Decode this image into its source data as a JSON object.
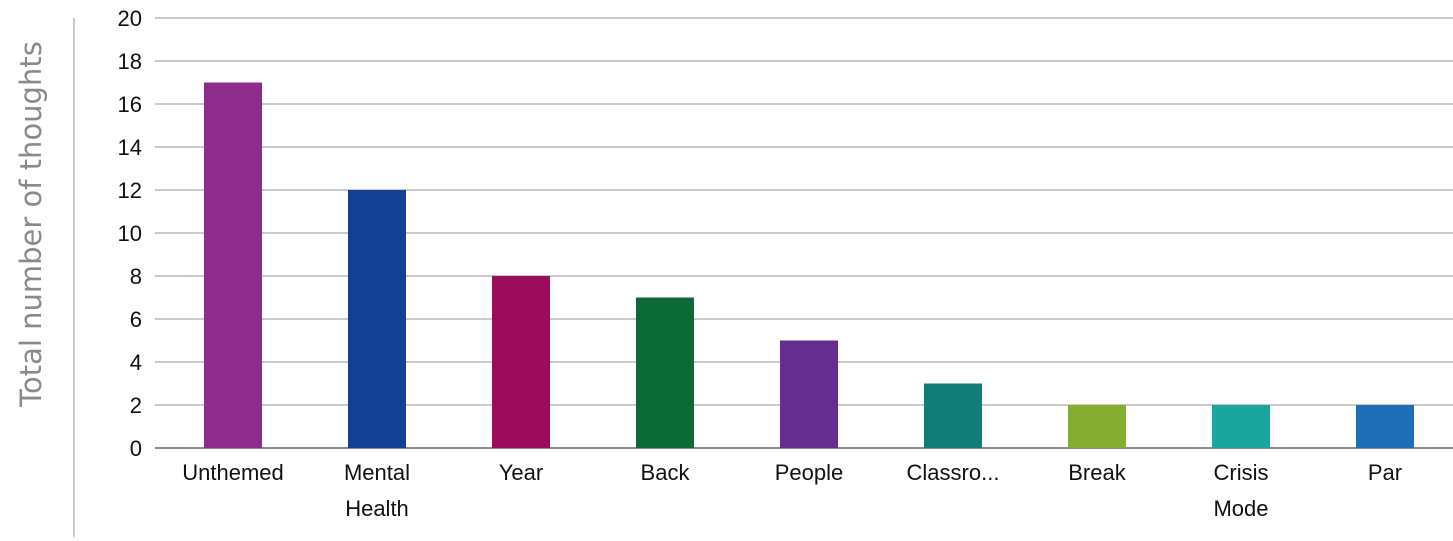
{
  "chart_data": {
    "type": "bar",
    "title": "",
    "xlabel": "",
    "ylabel": "Total number of thoughts",
    "categories": [
      [
        "Unthemed"
      ],
      [
        "Mental",
        "Health"
      ],
      [
        "Year"
      ],
      [
        "Back"
      ],
      [
        "People"
      ],
      [
        "Classro..."
      ],
      [
        "Break"
      ],
      [
        "Crisis",
        "Mode"
      ],
      [
        "Par"
      ]
    ],
    "values": [
      17,
      12,
      8,
      7,
      5,
      3,
      2,
      2,
      2
    ],
    "colors": [
      "#8e2c8c",
      "#144196",
      "#9b0c5c",
      "#0c6a38",
      "#652d90",
      "#127c76",
      "#85ad2f",
      "#19a69e",
      "#1f6fb6"
    ],
    "ylim": [
      0,
      20
    ],
    "yticks": [
      "0",
      "2",
      "4",
      "6",
      "8",
      "10",
      "12",
      "14",
      "16",
      "18",
      "20"
    ],
    "grid": true,
    "legend": "none"
  }
}
